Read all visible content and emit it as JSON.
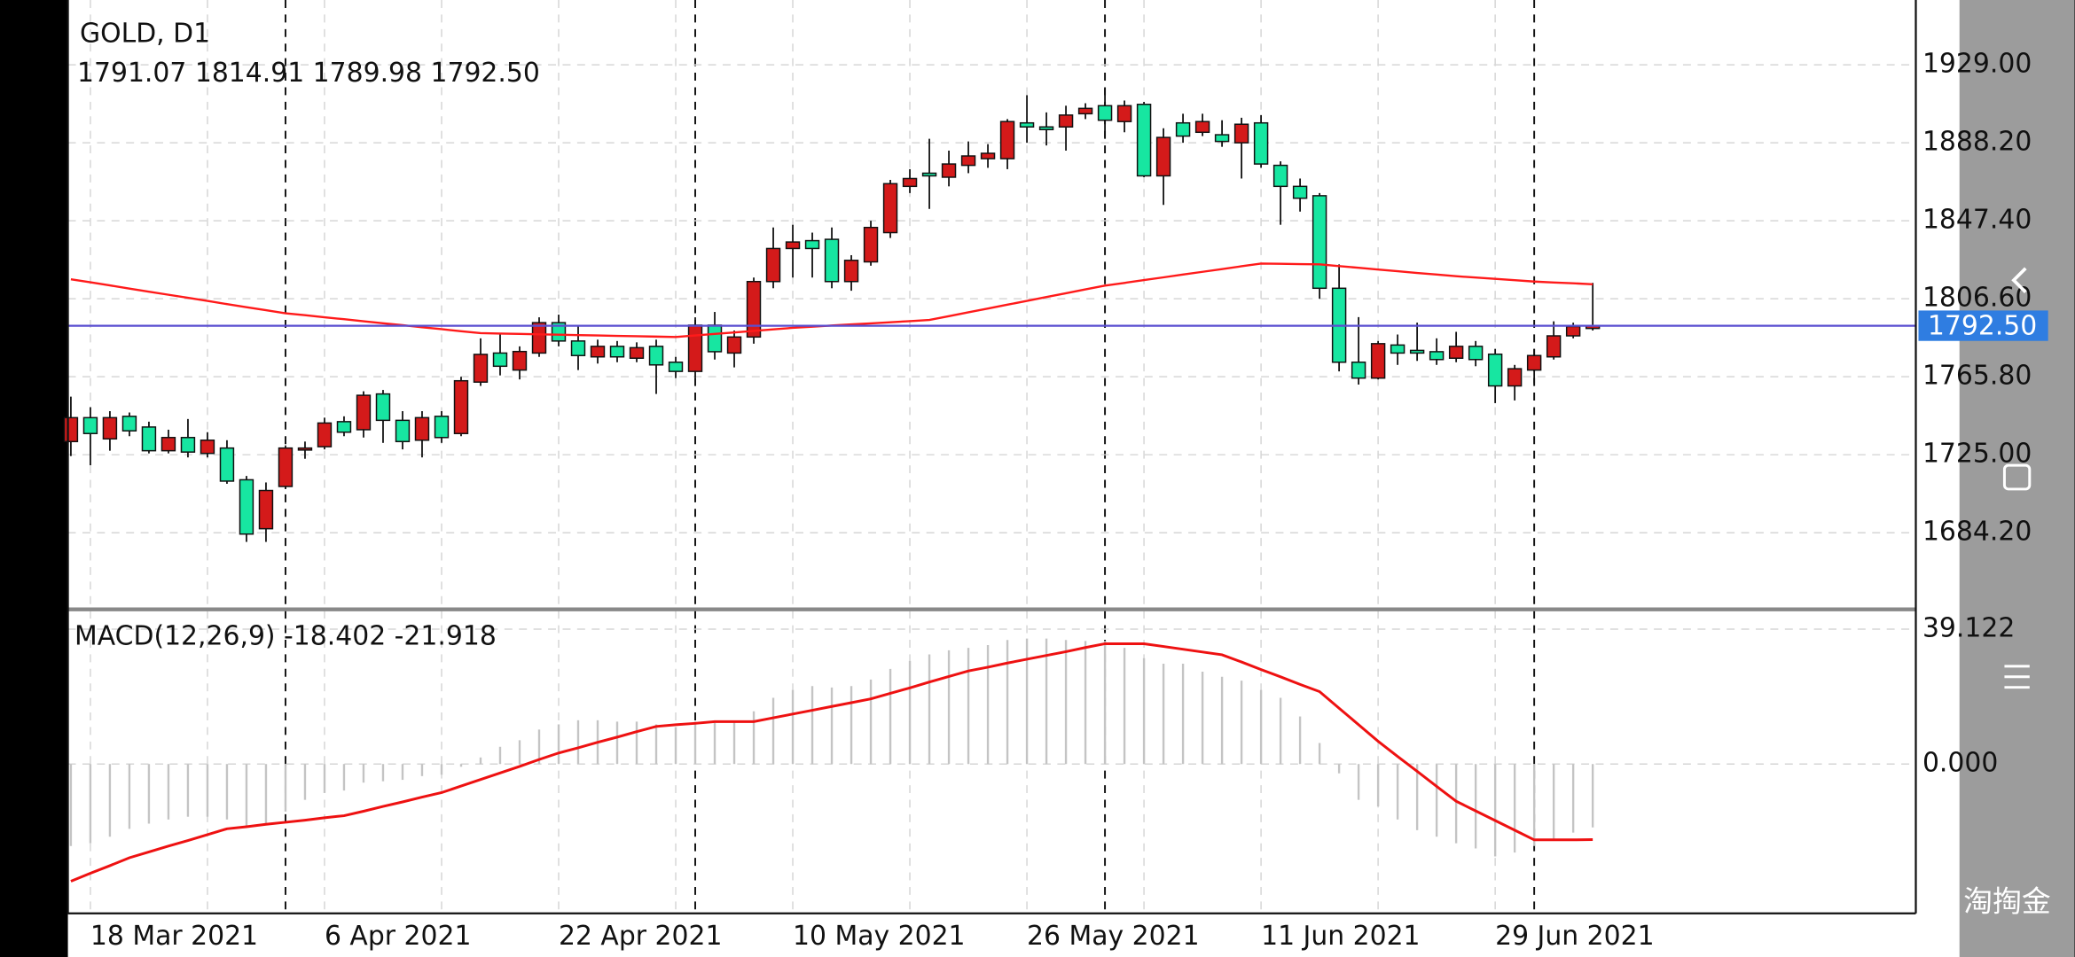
{
  "chart_data": [
    {
      "type": "candlestick",
      "title": "GOLD, D1",
      "subtitle": "1791.07 1814.91 1789.98 1792.50",
      "categories": [
        null,
        "18 Mar 2021",
        null,
        null,
        null,
        null,
        null,
        null,
        null,
        null,
        null,
        null,
        null,
        "6 Apr 2021",
        null,
        null,
        null,
        null,
        null,
        null,
        null,
        null,
        null,
        null,
        null,
        "22 Apr 2021",
        null,
        null,
        null,
        null,
        null,
        null,
        null,
        null,
        null,
        null,
        null,
        "10 May 2021",
        null,
        null,
        null,
        null,
        null,
        null,
        null,
        null,
        null,
        null,
        null,
        "26 May 2021",
        null,
        null,
        null,
        null,
        null,
        null,
        null,
        null,
        null,
        null,
        null,
        "11 Jun 2021",
        null,
        null,
        null,
        null,
        null,
        null,
        null,
        null,
        null,
        null,
        null,
        "29 Jun 2021",
        null,
        null,
        null,
        null,
        null
      ],
      "open": [
        1731.9,
        1744.4,
        1733.3,
        1745.1,
        1739.5,
        1727.1,
        1734.0,
        1725.7,
        1728.5,
        1711.9,
        1686.3,
        1708.4,
        1727.8,
        1729.2,
        1742.3,
        1738.1,
        1756.8,
        1743.0,
        1732.6,
        1745.1,
        1736.1,
        1763.0,
        1778.2,
        1769.3,
        1778.2,
        1794.1,
        1784.5,
        1776.2,
        1781.7,
        1775.5,
        1781.7,
        1773.4,
        1768.6,
        1792.8,
        1778.2,
        1786.6,
        1815.6,
        1832.9,
        1837.0,
        1837.7,
        1815.6,
        1825.9,
        1841.2,
        1865.4,
        1872.3,
        1870.2,
        1876.4,
        1879.9,
        1879.9,
        1898.6,
        1896.5,
        1896.5,
        1903.4,
        1907.6,
        1899.3,
        1908.3,
        1870.9,
        1898.6,
        1893.7,
        1892.4,
        1888.2,
        1898.6,
        1876.4,
        1865.4,
        1860.5,
        1812.1,
        1773.4,
        1765.1,
        1782.4,
        1779.6,
        1778.9,
        1775.5,
        1781.7,
        1777.6,
        1761.0,
        1769.3,
        1776.2,
        1787.2,
        1791.07
      ],
      "high": [
        1755.4,
        1749.9,
        1747.8,
        1747.1,
        1742.3,
        1738.1,
        1743.7,
        1736.8,
        1732.6,
        1713.9,
        1710.5,
        1729.9,
        1731.9,
        1744.4,
        1745.1,
        1758.2,
        1758.9,
        1747.8,
        1747.8,
        1747.8,
        1765.8,
        1785.9,
        1788.6,
        1781.7,
        1796.9,
        1798.3,
        1792.1,
        1785.2,
        1784.5,
        1783.8,
        1785.2,
        1776.2,
        1796.9,
        1799.7,
        1790.0,
        1817.7,
        1843.9,
        1845.3,
        1841.2,
        1843.9,
        1829.4,
        1847.4,
        1868.8,
        1874.4,
        1890.3,
        1884.1,
        1888.9,
        1887.5,
        1900.6,
        1913.1,
        1904.1,
        1907.6,
        1908.9,
        1916.6,
        1910.3,
        1909.6,
        1895.8,
        1903.4,
        1903.4,
        1900.0,
        1901.3,
        1902.7,
        1878.5,
        1869.5,
        1861.9,
        1824.6,
        1797.0,
        1784.5,
        1787.9,
        1794.1,
        1785.9,
        1789.3,
        1784.5,
        1780.4,
        1772.0,
        1780.4,
        1794.8,
        1794.1,
        1814.91
      ],
      "low": [
        1724.3,
        1719.5,
        1727.1,
        1734.7,
        1725.7,
        1725.7,
        1723.6,
        1723.6,
        1709.8,
        1679.4,
        1679.4,
        1707.0,
        1722.9,
        1727.8,
        1734.7,
        1734.0,
        1731.2,
        1727.8,
        1723.6,
        1731.2,
        1734.7,
        1761.0,
        1766.5,
        1764.4,
        1776.2,
        1781.7,
        1769.3,
        1772.7,
        1773.4,
        1773.4,
        1756.8,
        1765.1,
        1765.1,
        1774.8,
        1770.7,
        1783.1,
        1812.1,
        1817.7,
        1817.7,
        1812.1,
        1810.8,
        1823.9,
        1838.4,
        1861.9,
        1853.6,
        1865.4,
        1872.3,
        1875.1,
        1874.4,
        1888.2,
        1886.8,
        1884.1,
        1900.6,
        1891.0,
        1893.7,
        1870.2,
        1855.7,
        1888.2,
        1891.7,
        1886.1,
        1869.5,
        1875.1,
        1845.3,
        1852.2,
        1806.6,
        1768.6,
        1761.7,
        1764.4,
        1772.0,
        1774.1,
        1772.0,
        1773.4,
        1771.3,
        1752.0,
        1753.4,
        1762.3,
        1774.8,
        1785.9,
        1789.98
      ],
      "close": [
        1744.4,
        1736.1,
        1744.4,
        1737.5,
        1727.1,
        1734.0,
        1726.4,
        1732.6,
        1711.2,
        1683.5,
        1706.3,
        1728.5,
        1728.5,
        1741.6,
        1736.8,
        1756.1,
        1743.0,
        1731.9,
        1744.4,
        1734.0,
        1763.7,
        1777.5,
        1771.3,
        1779.0,
        1794.1,
        1784.5,
        1776.9,
        1781.7,
        1776.2,
        1781.0,
        1772.0,
        1768.6,
        1792.8,
        1778.9,
        1786.6,
        1815.6,
        1832.9,
        1836.3,
        1832.9,
        1815.6,
        1826.7,
        1843.9,
        1866.8,
        1869.5,
        1870.9,
        1877.1,
        1881.3,
        1882.7,
        1899.3,
        1896.5,
        1895.1,
        1902.7,
        1906.2,
        1900.0,
        1907.6,
        1870.9,
        1891.0,
        1891.7,
        1899.3,
        1888.9,
        1897.9,
        1877.1,
        1865.4,
        1859.2,
        1812.1,
        1773.4,
        1765.1,
        1783.1,
        1778.2,
        1778.2,
        1774.8,
        1781.7,
        1774.8,
        1761.0,
        1770.0,
        1776.9,
        1787.2,
        1792.1,
        1792.5
      ],
      "up_color": "#d41a1a",
      "down_color": "#17e6a1",
      "overlay": {
        "color": "#ff1a1a",
        "values": [
          1816.8,
          1815.2,
          1813.6,
          1811.9,
          1810.3,
          1808.7,
          1807.1,
          1805.5,
          1803.8,
          1802.2,
          1800.6,
          1799.0,
          1798.0,
          1796.9,
          1795.9,
          1794.8,
          1793.8,
          1792.8,
          1791.7,
          1790.7,
          1789.6,
          1788.6,
          1788.4,
          1788.2,
          1788.0,
          1787.8,
          1787.6,
          1787.4,
          1787.2,
          1787.0,
          1786.8,
          1786.6,
          1787.4,
          1788.2,
          1789.0,
          1789.8,
          1790.6,
          1791.4,
          1792.0,
          1792.6,
          1793.2,
          1793.7,
          1794.3,
          1794.9,
          1795.5,
          1797.5,
          1799.5,
          1801.5,
          1803.5,
          1805.5,
          1807.5,
          1809.5,
          1811.5,
          1813.5,
          1814.9,
          1816.4,
          1817.8,
          1819.3,
          1820.7,
          1822.1,
          1823.6,
          1825.0,
          1824.9,
          1824.7,
          1824.6,
          1823.7,
          1822.8,
          1821.9,
          1821.0,
          1820.1,
          1819.3,
          1818.4,
          1817.7,
          1817.0,
          1816.3,
          1815.6,
          1815.1,
          1814.7,
          1814.2
        ]
      },
      "current_price": {
        "value": 1792.5,
        "label": "1792.50"
      },
      "current_price_color": "#5a4fd0",
      "current_price_box": "#2f7de1",
      "ylim": [
        1644.8,
        1962.9
      ],
      "yticks": [
        {
          "value": 1929.0,
          "label": "1929.00"
        },
        {
          "value": 1888.2,
          "label": "1888.20"
        },
        {
          "value": 1847.4,
          "label": "1847.40"
        },
        {
          "value": 1806.6,
          "label": "1806.60"
        },
        {
          "value": 1765.8,
          "label": "1765.80"
        },
        {
          "value": 1725.0,
          "label": "1725.00"
        },
        {
          "value": 1684.2,
          "label": "1684.20"
        }
      ],
      "grid": true,
      "watermark": "淘掏金"
    },
    {
      "type": "macd",
      "title": "MACD(12,26,9) -18.402 -21.918",
      "histogram": {
        "color": "#c4c4c4",
        "values": [
          -23.8,
          -23.0,
          -21.1,
          -18.8,
          -17.3,
          -16.1,
          -15.3,
          -15.3,
          -16.1,
          -18.0,
          -17.6,
          -13.8,
          -10.4,
          -8.4,
          -7.7,
          -5.4,
          -5.0,
          -4.6,
          -3.5,
          -3.1,
          -0.8,
          1.9,
          5.0,
          6.9,
          10.0,
          11.5,
          12.7,
          12.7,
          12.3,
          12.3,
          11.5,
          10.7,
          12.3,
          11.9,
          12.3,
          15.3,
          19.2,
          21.5,
          22.6,
          22.2,
          22.6,
          24.5,
          27.6,
          29.9,
          31.8,
          33.0,
          33.7,
          34.5,
          36.0,
          36.4,
          36.4,
          36.0,
          35.7,
          35.7,
          33.7,
          30.7,
          29.1,
          29.1,
          26.8,
          25.3,
          24.2,
          21.5,
          19.2,
          13.8,
          6.1,
          -2.7,
          -10.4,
          -12.3,
          -16.1,
          -19.2,
          -21.1,
          -23.0,
          -24.5,
          -26.8,
          -25.7,
          -23.8,
          -21.9,
          -19.9,
          -18.402
        ]
      },
      "signal": {
        "color": "#ee1111",
        "values": [
          -34.0,
          -31.7,
          -29.5,
          -27.2,
          -25.5,
          -23.8,
          -22.2,
          -20.5,
          -18.8,
          -18.2,
          -17.5,
          -16.9,
          -16.3,
          -15.6,
          -15.0,
          -13.7,
          -12.3,
          -11.0,
          -9.6,
          -8.3,
          -6.4,
          -4.5,
          -2.6,
          -0.7,
          1.3,
          3.2,
          4.7,
          6.3,
          7.8,
          9.4,
          10.9,
          11.4,
          11.8,
          12.3,
          12.3,
          12.3,
          13.4,
          14.5,
          15.6,
          16.7,
          17.8,
          18.9,
          20.5,
          22.1,
          23.8,
          25.4,
          27.0,
          28.1,
          29.3,
          30.4,
          31.5,
          32.6,
          33.8,
          34.9,
          34.9,
          34.9,
          34.1,
          33.3,
          32.5,
          31.7,
          29.6,
          27.4,
          25.3,
          23.1,
          21.0,
          16.2,
          11.4,
          6.6,
          2.2,
          -2.1,
          -6.5,
          -10.8,
          -13.6,
          -16.4,
          -19.2,
          -22.0,
          -22.0,
          -22.0,
          -21.918
        ]
      },
      "ylim": [
        -43.34,
        44.49
      ],
      "yticks": [
        {
          "value": 39.122,
          "label": "39.122"
        },
        {
          "value": 0,
          "label": "0.000"
        }
      ],
      "grid": true
    }
  ]
}
